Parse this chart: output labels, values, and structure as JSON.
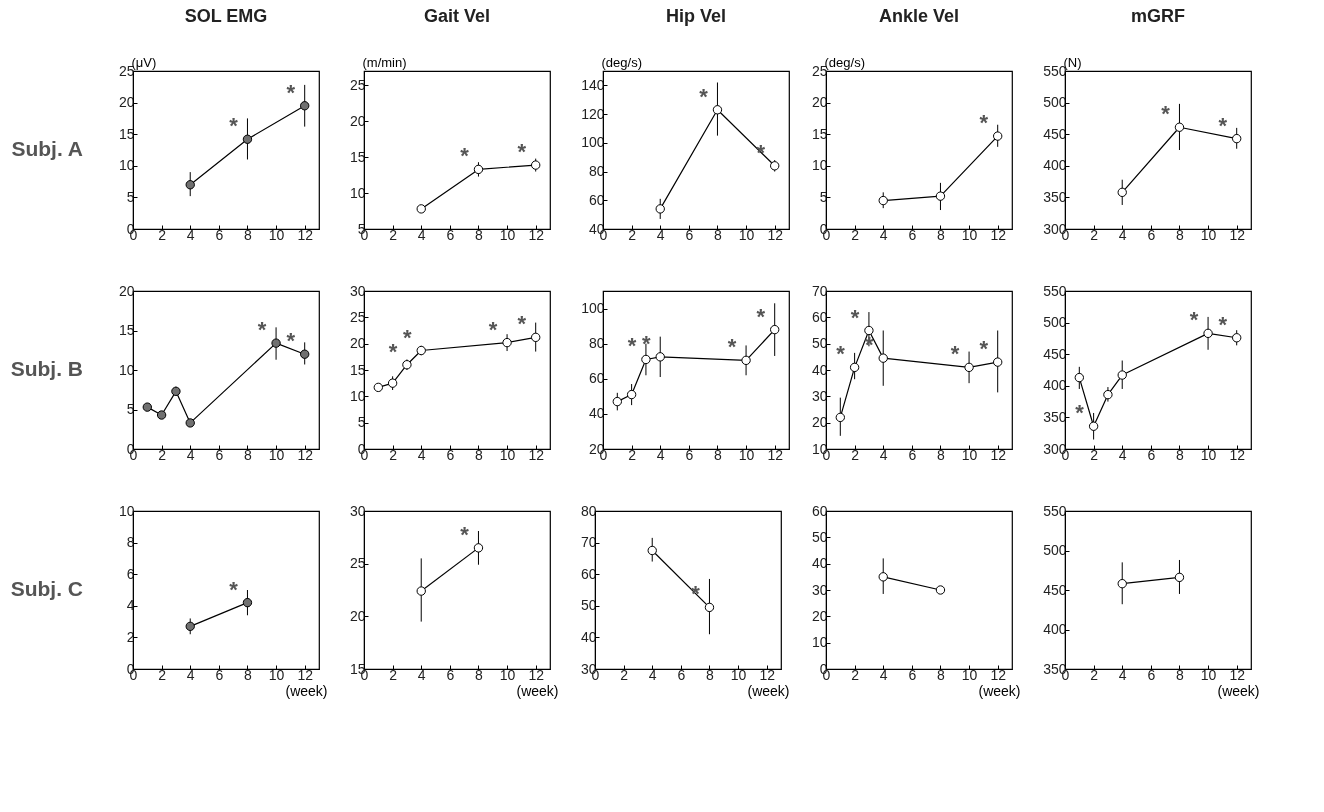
{
  "chart_data": [
    {
      "type": "line",
      "title": "SOL EMG",
      "ylabel": "(μV)",
      "annotations": [
        "Subj. A"
      ],
      "x": [
        4,
        8,
        12
      ],
      "xlim": [
        0,
        13
      ],
      "xticks": [
        0,
        2,
        4,
        6,
        8,
        10,
        12
      ],
      "ylim": [
        0,
        25
      ],
      "yticks": [
        0,
        5,
        10,
        15,
        20,
        25
      ],
      "marker": "circle",
      "grid": false,
      "series": [
        {
          "color": "#707070",
          "values": [
            7.0,
            14.2,
            19.5
          ],
          "errors": [
            [
              5.2,
              9.0
            ],
            [
              11.0,
              17.5
            ],
            [
              16.2,
              22.8
            ]
          ],
          "value_labels": [
            null,
            "*",
            "*"
          ]
        }
      ]
    },
    {
      "type": "line",
      "title": "Gait Vel",
      "ylabel": "(m/min)",
      "x": [
        4,
        8,
        12
      ],
      "xlim": [
        0,
        13
      ],
      "xticks": [
        0,
        2,
        4,
        6,
        8,
        10,
        12
      ],
      "ylim": [
        5,
        27
      ],
      "yticks": [
        5,
        10,
        15,
        20,
        25
      ],
      "marker": "circle",
      "grid": false,
      "series": [
        {
          "color": "#ffffff",
          "values": [
            7.8,
            13.3,
            13.9
          ],
          "errors": [
            [
              7.5,
              8.1
            ],
            [
              12.3,
              14.3
            ],
            [
              13.0,
              14.8
            ]
          ],
          "value_labels": [
            null,
            "*",
            "*"
          ]
        }
      ]
    },
    {
      "type": "line",
      "title": "Hip Vel",
      "ylabel": "(deg/s)",
      "x": [
        4,
        8,
        12
      ],
      "xlim": [
        0,
        13
      ],
      "xticks": [
        0,
        2,
        4,
        6,
        8,
        10,
        12
      ],
      "ylim": [
        40,
        150
      ],
      "yticks": [
        40,
        60,
        80,
        100,
        120,
        140
      ],
      "marker": "circle",
      "grid": false,
      "series": [
        {
          "color": "#ffffff",
          "values": [
            54,
            123,
            84
          ],
          "errors": [
            [
              47,
              61
            ],
            [
              105,
              142
            ],
            [
              80,
              88
            ]
          ],
          "value_labels": [
            null,
            "*",
            "*"
          ]
        }
      ]
    },
    {
      "type": "line",
      "title": "Ankle Vel",
      "ylabel": "(deg/s)",
      "x": [
        4,
        8,
        12
      ],
      "xlim": [
        0,
        13
      ],
      "xticks": [
        0,
        2,
        4,
        6,
        8,
        10,
        12
      ],
      "ylim": [
        0,
        25
      ],
      "yticks": [
        0,
        5,
        10,
        15,
        20,
        25
      ],
      "marker": "circle",
      "grid": false,
      "series": [
        {
          "color": "#ffffff",
          "values": [
            4.5,
            5.2,
            14.7
          ],
          "errors": [
            [
              3.3,
              5.8
            ],
            [
              3.0,
              7.3
            ],
            [
              13.0,
              16.5
            ]
          ],
          "value_labels": [
            null,
            null,
            "*"
          ]
        }
      ]
    },
    {
      "type": "line",
      "title": "mGRF",
      "ylabel": "(N)",
      "x": [
        4,
        8,
        12
      ],
      "xlim": [
        0,
        13
      ],
      "xticks": [
        0,
        2,
        4,
        6,
        8,
        10,
        12
      ],
      "ylim": [
        300,
        550
      ],
      "yticks": [
        300,
        350,
        400,
        450,
        500,
        550
      ],
      "marker": "circle",
      "grid": false,
      "series": [
        {
          "color": "#ffffff",
          "values": [
            358,
            461,
            443
          ],
          "errors": [
            [
              338,
              378
            ],
            [
              425,
              498
            ],
            [
              427,
              460
            ]
          ],
          "value_labels": [
            null,
            "*",
            "*"
          ]
        }
      ]
    },
    {
      "type": "line",
      "annotations": [
        "Subj. B"
      ],
      "x": [
        1,
        2,
        3,
        4,
        10,
        12
      ],
      "xlim": [
        0,
        13
      ],
      "xticks": [
        0,
        2,
        4,
        6,
        8,
        10,
        12
      ],
      "ylim": [
        0,
        20
      ],
      "yticks": [
        0,
        5,
        10,
        15,
        20
      ],
      "marker": "circle",
      "grid": false,
      "series": [
        {
          "color": "#707070",
          "values": [
            5.3,
            4.3,
            7.3,
            3.3,
            13.4,
            12.0
          ],
          "errors": [
            [
              4.8,
              5.8
            ],
            [
              4.0,
              4.6
            ],
            [
              6.8,
              7.9
            ],
            [
              3.1,
              3.5
            ],
            [
              11.3,
              15.4
            ],
            [
              10.7,
              13.5
            ]
          ],
          "value_labels": [
            null,
            null,
            null,
            null,
            "*",
            "*"
          ]
        }
      ]
    },
    {
      "type": "line",
      "x": [
        1,
        2,
        3,
        4,
        10,
        12
      ],
      "xlim": [
        0,
        13
      ],
      "xticks": [
        0,
        2,
        4,
        6,
        8,
        10,
        12
      ],
      "ylim": [
        0,
        30
      ],
      "yticks": [
        0,
        5,
        10,
        15,
        20,
        25,
        30
      ],
      "marker": "circle",
      "grid": false,
      "series": [
        {
          "color": "#ffffff",
          "values": [
            11.7,
            12.5,
            16.0,
            18.7,
            20.2,
            21.2
          ],
          "errors": [
            [
              11.2,
              12.2
            ],
            [
              11.2,
              13.8
            ],
            [
              15.0,
              17.0
            ],
            [
              17.8,
              19.6
            ],
            [
              18.6,
              21.8
            ],
            [
              18.5,
              24.0
            ]
          ],
          "value_labels": [
            null,
            null,
            "*",
            "*",
            "*",
            "*"
          ]
        }
      ]
    },
    {
      "type": "line",
      "x": [
        1,
        2,
        3,
        4,
        10,
        12
      ],
      "xlim": [
        0,
        13
      ],
      "xticks": [
        0,
        2,
        4,
        6,
        8,
        10,
        12
      ],
      "ylim": [
        20,
        110
      ],
      "yticks": [
        20,
        40,
        60,
        80,
        100
      ],
      "marker": "circle",
      "grid": false,
      "series": [
        {
          "color": "#ffffff",
          "values": [
            47,
            51,
            71,
            72.5,
            70.5,
            88
          ],
          "errors": [
            [
              42,
              52
            ],
            [
              45,
              57
            ],
            [
              62,
              80
            ],
            [
              61,
              84
            ],
            [
              62,
              79
            ],
            [
              73,
              103
            ]
          ],
          "value_labels": [
            null,
            null,
            "*",
            "*",
            "*",
            "*"
          ]
        }
      ]
    },
    {
      "type": "line",
      "x": [
        1,
        2,
        3,
        4,
        10,
        12
      ],
      "xlim": [
        0,
        13
      ],
      "xticks": [
        0,
        2,
        4,
        6,
        8,
        10,
        12
      ],
      "ylim": [
        10,
        70
      ],
      "yticks": [
        10,
        20,
        30,
        40,
        50,
        60,
        70
      ],
      "marker": "circle",
      "grid": false,
      "series": [
        {
          "color": "#ffffff",
          "values": [
            22,
            41,
            55,
            44.5,
            41,
            43
          ],
          "errors": [
            [
              15,
              29.5
            ],
            [
              36.5,
              46.5
            ],
            [
              49,
              62
            ],
            [
              34,
              55
            ],
            [
              35,
              47
            ],
            [
              31.5,
              55
            ]
          ],
          "value_labels": [
            null,
            "*",
            "*",
            "*",
            "*",
            "*"
          ]
        }
      ]
    },
    {
      "type": "line",
      "x": [
        1,
        2,
        3,
        4,
        10,
        12
      ],
      "xlim": [
        0,
        13
      ],
      "xticks": [
        0,
        2,
        4,
        6,
        8,
        10,
        12
      ],
      "ylim": [
        300,
        550
      ],
      "yticks": [
        300,
        350,
        400,
        450,
        500,
        550
      ],
      "marker": "circle",
      "grid": false,
      "series": [
        {
          "color": "#ffffff",
          "values": [
            413,
            336,
            386,
            417,
            483,
            476
          ],
          "errors": [
            [
              395,
              430
            ],
            [
              315,
              357
            ],
            [
              375,
              398
            ],
            [
              395,
              440
            ],
            [
              457,
              509
            ],
            [
              464,
              488
            ]
          ],
          "value_labels": [
            null,
            "*",
            null,
            null,
            "*",
            "*"
          ]
        }
      ]
    },
    {
      "type": "line",
      "xlabel": "(week)",
      "annotations": [
        "Subj. C"
      ],
      "x": [
        4,
        8
      ],
      "xlim": [
        0,
        13
      ],
      "xticks": [
        0,
        2,
        4,
        6,
        8,
        10,
        12
      ],
      "ylim": [
        0,
        10
      ],
      "yticks": [
        0,
        2,
        4,
        6,
        8,
        10
      ],
      "marker": "circle",
      "grid": false,
      "series": [
        {
          "color": "#707070",
          "values": [
            2.7,
            4.2
          ],
          "errors": [
            [
              2.2,
              3.2
            ],
            [
              3.4,
              5.0
            ]
          ],
          "value_labels": [
            null,
            "*"
          ]
        }
      ]
    },
    {
      "type": "line",
      "xlabel": "(week)",
      "x": [
        4,
        8
      ],
      "xlim": [
        0,
        13
      ],
      "xticks": [
        0,
        2,
        4,
        6,
        8,
        10,
        12
      ],
      "ylim": [
        15,
        30
      ],
      "yticks": [
        15,
        20,
        25,
        30
      ],
      "marker": "circle",
      "grid": false,
      "series": [
        {
          "color": "#ffffff",
          "values": [
            22.4,
            26.5
          ],
          "errors": [
            [
              19.5,
              25.5
            ],
            [
              24.9,
              28.1
            ]
          ],
          "value_labels": [
            null,
            "*"
          ]
        }
      ]
    },
    {
      "type": "line",
      "xlabel": "(week)",
      "x": [
        4,
        8
      ],
      "xlim": [
        0,
        13
      ],
      "xticks": [
        0,
        2,
        4,
        6,
        8,
        10,
        12
      ],
      "ylim": [
        30,
        80
      ],
      "yticks": [
        30,
        40,
        50,
        60,
        70,
        80
      ],
      "marker": "circle",
      "grid": false,
      "series": [
        {
          "color": "#ffffff",
          "values": [
            67.5,
            49.5
          ],
          "errors": [
            [
              64,
              71.5
            ],
            [
              41,
              58.5
            ]
          ],
          "value_labels": [
            null,
            "*"
          ]
        }
      ]
    },
    {
      "type": "line",
      "xlabel": "(week)",
      "x": [
        4,
        8
      ],
      "xlim": [
        0,
        13
      ],
      "xticks": [
        0,
        2,
        4,
        6,
        8,
        10,
        12
      ],
      "ylim": [
        0,
        60
      ],
      "yticks": [
        0,
        10,
        20,
        30,
        40,
        50,
        60
      ],
      "marker": "circle",
      "grid": false,
      "series": [
        {
          "color": "#ffffff",
          "values": [
            35,
            30
          ],
          "errors": [
            [
              28.5,
              42
            ],
            [
              28.5,
              31.5
            ]
          ]
        }
      ]
    },
    {
      "type": "line",
      "xlabel": "(week)",
      "x": [
        4,
        8
      ],
      "xlim": [
        0,
        13
      ],
      "xticks": [
        0,
        2,
        4,
        6,
        8,
        10,
        12
      ],
      "ylim": [
        350,
        550
      ],
      "yticks": [
        350,
        400,
        450,
        500,
        550
      ],
      "marker": "circle",
      "grid": false,
      "series": [
        {
          "color": "#ffffff",
          "values": [
            458,
            466
          ],
          "errors": [
            [
              432,
              485
            ],
            [
              445,
              488
            ]
          ]
        }
      ]
    }
  ]
}
